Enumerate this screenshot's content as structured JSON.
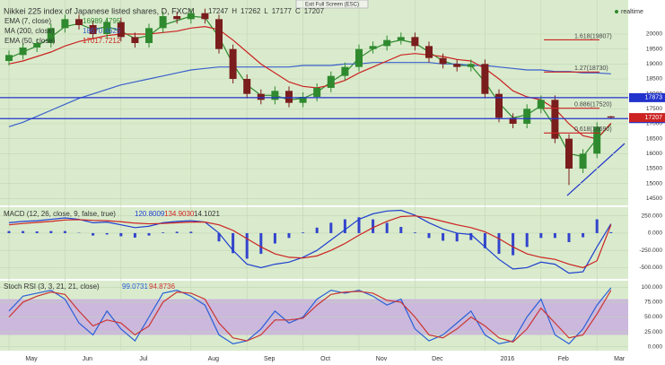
{
  "header": {
    "title": "Nikkei 225 index of Japanese listed shares, D, FXCM",
    "quote": [
      "17247",
      "H",
      "17262",
      "L",
      "17177",
      "C",
      "17207"
    ],
    "exit": "Exit Full Screen (ESC)",
    "realtime": "realtime"
  },
  "chart_data": {
    "type": "candlestick",
    "categories": [
      "May",
      null,
      null,
      null,
      "Jun",
      null,
      null,
      null,
      "Jul",
      null,
      null,
      null,
      null,
      "Aug",
      null,
      null,
      null,
      "Sep",
      null,
      null,
      null,
      "Oct",
      null,
      null,
      null,
      "Nov",
      null,
      null,
      null,
      "Dec",
      null,
      null,
      null,
      null,
      "2016",
      null,
      null,
      null,
      "Feb",
      null,
      null,
      null,
      "Mar",
      null
    ],
    "open": [
      19100,
      19300,
      19550,
      19700,
      20200,
      20500,
      20300,
      20000,
      20400,
      19900,
      19700,
      20200,
      20600,
      20500,
      20700,
      20500,
      19500,
      18500,
      18000,
      17800,
      18100,
      17700,
      17900,
      18200,
      18600,
      18900,
      19500,
      19600,
      19800,
      19900,
      19600,
      19200,
      19000,
      18900,
      19000,
      18000,
      17200,
      17000,
      17500,
      17800,
      16500,
      15500,
      16000,
      17247
    ],
    "high": [
      19450,
      19700,
      19850,
      20350,
      20650,
      20650,
      20450,
      20550,
      20550,
      20050,
      20350,
      20750,
      20750,
      20850,
      20850,
      20650,
      19650,
      18650,
      18150,
      18250,
      18250,
      18050,
      18350,
      18750,
      19050,
      19650,
      19750,
      19950,
      20050,
      20050,
      19750,
      19350,
      19150,
      19150,
      19150,
      18150,
      17350,
      17650,
      17950,
      17950,
      16650,
      16150,
      17050,
      17262
    ],
    "low": [
      18950,
      19150,
      19400,
      19550,
      20050,
      20150,
      19850,
      19850,
      19750,
      19550,
      19550,
      20050,
      20350,
      20350,
      20350,
      19350,
      18350,
      17850,
      17650,
      17650,
      17550,
      17550,
      17750,
      18050,
      18450,
      18750,
      19350,
      19450,
      19650,
      19450,
      19050,
      18850,
      18750,
      18750,
      17850,
      17050,
      16850,
      16850,
      17350,
      16350,
      14950,
      15350,
      15850,
      17177
    ],
    "close": [
      19300,
      19550,
      19700,
      20200,
      20500,
      20300,
      20000,
      20400,
      19900,
      19700,
      20200,
      20600,
      20500,
      20700,
      20500,
      19500,
      18500,
      18000,
      17800,
      18100,
      17700,
      17900,
      18200,
      18600,
      18900,
      19500,
      19600,
      19800,
      19900,
      19600,
      19200,
      19000,
      18900,
      19000,
      18000,
      17200,
      17000,
      17500,
      17800,
      16500,
      15500,
      16000,
      16900,
      17207
    ],
    "up_color": "#2f8a2f",
    "down_color": "#7a1d1d",
    "series": [
      {
        "name": "EMA (7, close)",
        "value_label": "16989.4795",
        "color": "#2f8a2f",
        "values": [
          19200,
          19400,
          19600,
          19900,
          20250,
          20350,
          20150,
          20250,
          20100,
          19850,
          19950,
          20300,
          20450,
          20600,
          20550,
          19900,
          19000,
          18300,
          17950,
          17950,
          17800,
          17850,
          18050,
          18400,
          18700,
          19200,
          19500,
          19700,
          19800,
          19700,
          19400,
          19100,
          18950,
          18950,
          18400,
          17700,
          17200,
          17300,
          17600,
          16900,
          16000,
          15900,
          16500,
          16989
        ]
      },
      {
        "name": "MA (200, close)",
        "value_label": "18670.4625",
        "color": "#3a5fcd",
        "values": [
          16900,
          17050,
          17250,
          17450,
          17650,
          17850,
          18000,
          18150,
          18300,
          18400,
          18500,
          18600,
          18700,
          18800,
          18850,
          18900,
          18900,
          18900,
          18900,
          18900,
          18900,
          18950,
          18950,
          18950,
          19000,
          19000,
          19050,
          19050,
          19050,
          19050,
          19050,
          19000,
          19000,
          18950,
          18950,
          18900,
          18850,
          18800,
          18800,
          18750,
          18750,
          18700,
          18700,
          18670
        ]
      },
      {
        "name": "EMA (50, close)",
        "value_label": "17017.7212",
        "color": "#cc2222",
        "values": [
          19000,
          19100,
          19250,
          19400,
          19600,
          19750,
          19850,
          19950,
          20000,
          20000,
          20000,
          20050,
          20100,
          20200,
          20250,
          20150,
          19800,
          19400,
          19000,
          18700,
          18400,
          18250,
          18200,
          18300,
          18450,
          18700,
          18900,
          19100,
          19300,
          19350,
          19300,
          19250,
          19150,
          19100,
          18850,
          18500,
          18100,
          17900,
          17800,
          17500,
          17000,
          16600,
          16500,
          17017
        ]
      }
    ],
    "ylim": [
      14300,
      20900
    ],
    "yticks": [
      14500,
      15000,
      15500,
      16000,
      16500,
      17000,
      17500,
      18000,
      18500,
      19000,
      19500,
      20000
    ],
    "hlines": [
      {
        "value": 17873,
        "label": "17873",
        "color": "#2233cc"
      },
      {
        "value": 17172,
        "label": "17172",
        "color": "#2233cc"
      },
      {
        "value": 17207,
        "label": "17207",
        "color": "#cc2222"
      }
    ],
    "fib": [
      {
        "value": 19807,
        "label": "1.618(19807)"
      },
      {
        "value": 18730,
        "label": "1.27(18730)"
      },
      {
        "value": 17520,
        "label": "0.886(17520)"
      },
      {
        "value": 16690,
        "label": "0.618(16690)"
      }
    ],
    "macd": {
      "title": "MACD (12, 26, close, 9, false, true)",
      "value_labels": [
        "120.8009",
        "134.9030",
        "14.1021"
      ],
      "macd": [
        150,
        170,
        180,
        200,
        220,
        200,
        150,
        160,
        120,
        80,
        100,
        150,
        170,
        180,
        160,
        0,
        -250,
        -450,
        -500,
        -450,
        -420,
        -350,
        -250,
        -100,
        50,
        200,
        280,
        320,
        330,
        260,
        150,
        60,
        0,
        -20,
        -200,
        -380,
        -520,
        -500,
        -420,
        -450,
        -580,
        -560,
        -200,
        134.903
      ],
      "signal": [
        120,
        140,
        155,
        170,
        190,
        195,
        185,
        180,
        165,
        145,
        135,
        140,
        150,
        160,
        160,
        120,
        40,
        -80,
        -200,
        -300,
        -350,
        -360,
        -330,
        -250,
        -150,
        -30,
        80,
        170,
        240,
        250,
        220,
        170,
        120,
        80,
        20,
        -80,
        -200,
        -300,
        -350,
        -380,
        -450,
        -500,
        -400,
        120.8009
      ],
      "histogram": [
        30,
        30,
        25,
        30,
        30,
        5,
        -35,
        -20,
        -45,
        -65,
        -35,
        10,
        20,
        20,
        0,
        -120,
        -290,
        -370,
        -300,
        -150,
        -70,
        10,
        80,
        150,
        200,
        230,
        200,
        150,
        90,
        10,
        -70,
        -110,
        -120,
        -100,
        -220,
        -300,
        -320,
        -200,
        -70,
        -70,
        -130,
        -60,
        200,
        14.1021
      ],
      "ylim": [
        -650,
        350
      ],
      "yticks": [
        {
          "value": 250,
          "label": "250.000"
        },
        {
          "value": 0,
          "label": "0.000"
        },
        {
          "value": -250,
          "label": "-250.000"
        },
        {
          "value": -500,
          "label": "-500.000"
        }
      ],
      "macd_color": "#1f3fd0",
      "signal_color": "#cc2222",
      "hist_color": "#3344cc"
    },
    "stoch": {
      "title": "Stoch RSI (3, 3, 21, 21, close)",
      "value_labels": [
        "99.0731",
        "94.8736"
      ],
      "k": [
        60,
        85,
        90,
        95,
        80,
        40,
        20,
        60,
        30,
        10,
        50,
        90,
        95,
        85,
        70,
        20,
        5,
        10,
        30,
        60,
        40,
        50,
        80,
        95,
        90,
        95,
        85,
        70,
        80,
        30,
        10,
        20,
        40,
        60,
        20,
        5,
        10,
        50,
        80,
        20,
        5,
        30,
        70,
        99.0731
      ],
      "d": [
        50,
        75,
        85,
        92,
        88,
        60,
        35,
        45,
        40,
        20,
        35,
        75,
        92,
        90,
        80,
        40,
        15,
        10,
        20,
        45,
        45,
        48,
        70,
        88,
        92,
        93,
        90,
        78,
        75,
        50,
        20,
        15,
        30,
        50,
        35,
        15,
        8,
        30,
        65,
        40,
        15,
        20,
        55,
        94.8736
      ],
      "ylim": [
        -5,
        108
      ],
      "yticks": [
        {
          "value": 100,
          "label": "100.000"
        },
        {
          "value": 75,
          "label": "75.000"
        },
        {
          "value": 50,
          "label": "50.000"
        },
        {
          "value": 25,
          "label": "25.000"
        },
        {
          "value": 0,
          "label": "0.000"
        }
      ],
      "band": [
        20,
        80
      ],
      "k_color": "#2a5fd8",
      "d_color": "#cc3333",
      "band_color": "#cbb8dc"
    }
  }
}
